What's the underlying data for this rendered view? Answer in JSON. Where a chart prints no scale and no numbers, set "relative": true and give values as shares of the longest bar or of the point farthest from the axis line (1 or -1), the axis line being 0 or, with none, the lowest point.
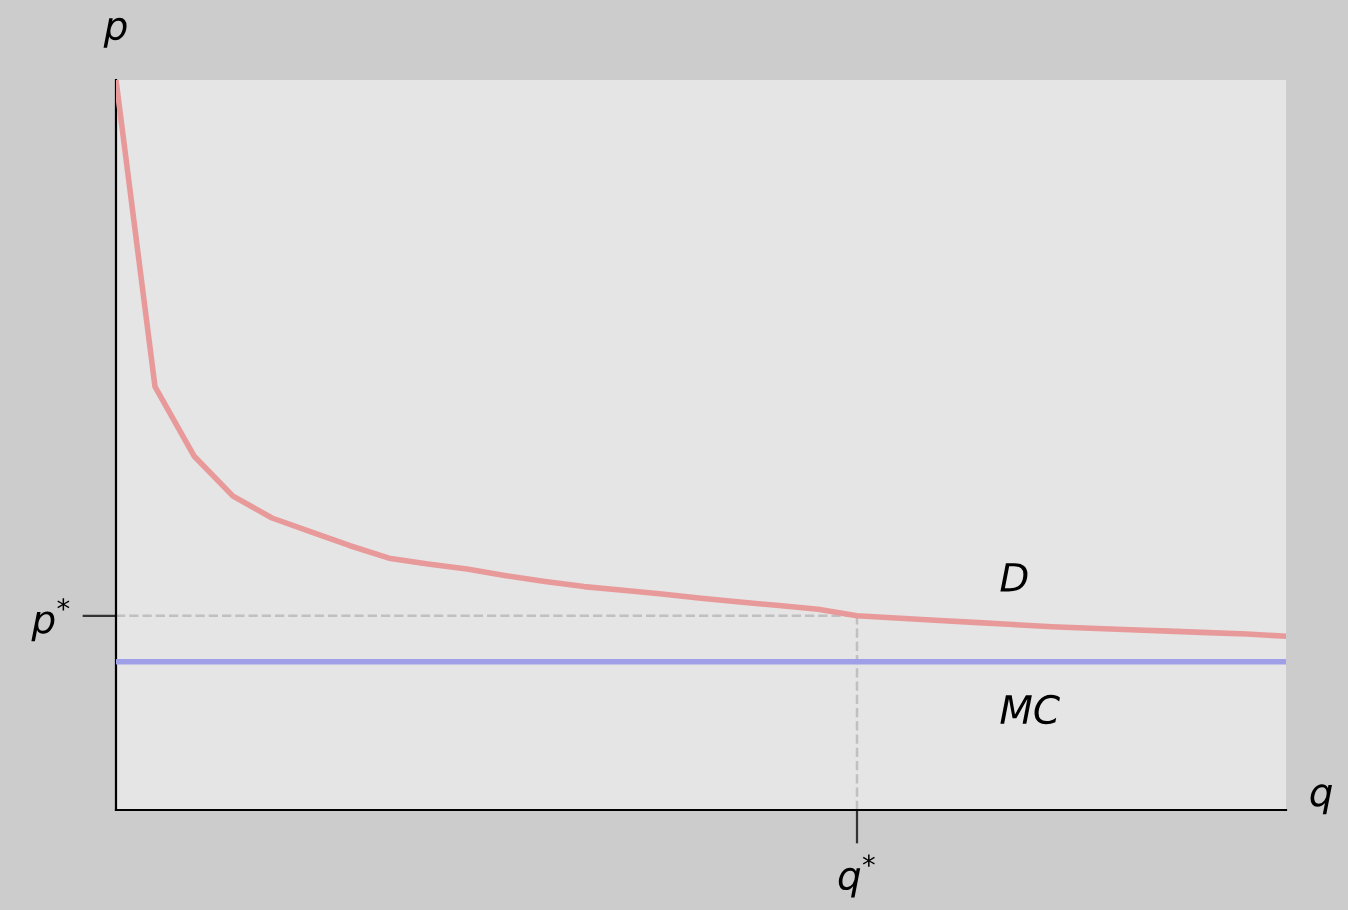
{
  "chart_data": {
    "type": "line",
    "relative": true,
    "xlabel": "q",
    "ylabel": "p",
    "categories": [
      null,
      null,
      null,
      null,
      null,
      null,
      null,
      null,
      null,
      null,
      null,
      null,
      null,
      null,
      null,
      null,
      null,
      null,
      null,
      null,
      null,
      null,
      null,
      null,
      null,
      null,
      null,
      null,
      null,
      null,
      null
    ],
    "annotations": [
      "q$^{*}$"
    ],
    "series": [
      {
        "name": "D",
        "color": "#e89a9a",
        "values": [
          1.0,
          0.58,
          0.485,
          0.43,
          0.4,
          0.381,
          0.362,
          0.345,
          0.337,
          0.33,
          0.321,
          0.313,
          0.306,
          0.301,
          0.296,
          0.29,
          0.285,
          0.28,
          0.275,
          0.266,
          0.263,
          0.26,
          0.257,
          0.254,
          0.251,
          0.249,
          0.247,
          0.245,
          0.243,
          0.241,
          0.238
        ]
      },
      {
        "name": "MC",
        "color": "#9f9fe8",
        "values": [
          0.203,
          0.203,
          0.203,
          0.203,
          0.203,
          0.203,
          0.203,
          0.203,
          0.203,
          0.203,
          0.203,
          0.203,
          0.203,
          0.203,
          0.203,
          0.203,
          0.203,
          0.203,
          0.203,
          0.203,
          0.203,
          0.203,
          0.203,
          0.203,
          0.203,
          0.203,
          0.203,
          0.203,
          0.203,
          0.203,
          0.203
        ]
      }
    ],
    "ref_lines": [
      {
        "axis": "y",
        "value": 0.266,
        "label": "p$^{*}$",
        "color": "#c0c0c0",
        "line_style": "dashed"
      }
    ],
    "grid": false,
    "legend": false,
    "marker": "none",
    "line_style": "solid"
  }
}
